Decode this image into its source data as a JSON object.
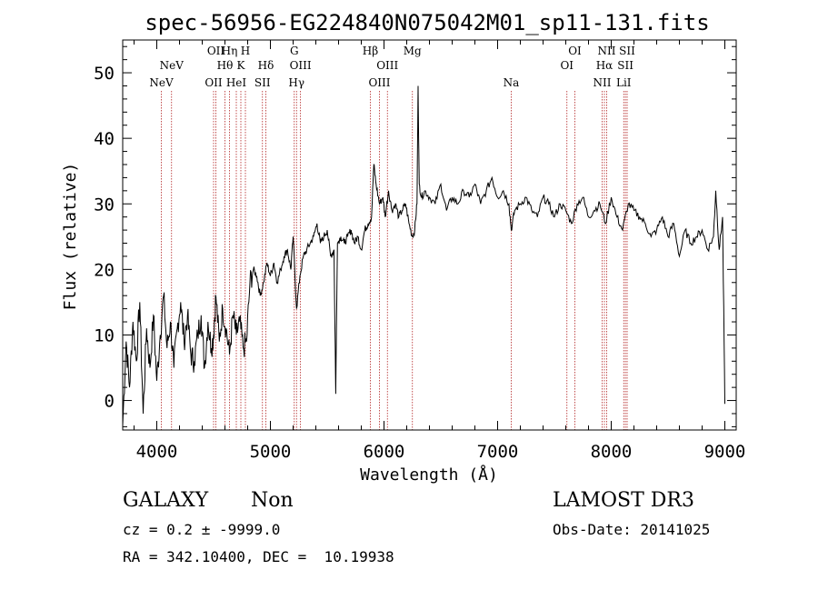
{
  "chart_data": {
    "type": "line",
    "title": "spec-56956-EG224840N075042M01_sp11-131.fits",
    "xlabel": "Wavelength (Å)",
    "ylabel": "Flux (relative)",
    "xlim": [
      3700,
      9100
    ],
    "ylim": [
      -4.5,
      55
    ],
    "xticks": [
      4000,
      5000,
      6000,
      7000,
      8000,
      9000
    ],
    "yticks": [
      0,
      10,
      20,
      30,
      40,
      50
    ],
    "series": [
      {
        "name": "spectrum",
        "x": [
          3700,
          3730,
          3760,
          3790,
          3820,
          3850,
          3880,
          3910,
          3940,
          3970,
          4000,
          4030,
          4060,
          4090,
          4120,
          4150,
          4180,
          4210,
          4240,
          4270,
          4300,
          4330,
          4360,
          4390,
          4420,
          4450,
          4480,
          4500,
          4520,
          4550,
          4580,
          4610,
          4640,
          4670,
          4700,
          4730,
          4760,
          4790,
          4820,
          4850,
          4880,
          4910,
          4940,
          4970,
          5000,
          5030,
          5060,
          5090,
          5120,
          5150,
          5180,
          5200,
          5230,
          5260,
          5290,
          5320,
          5350,
          5380,
          5410,
          5440,
          5470,
          5500,
          5530,
          5560,
          5575,
          5590,
          5620,
          5650,
          5680,
          5710,
          5740,
          5770,
          5800,
          5830,
          5860,
          5890,
          5910,
          5930,
          5960,
          5990,
          6010,
          6040,
          6070,
          6100,
          6130,
          6160,
          6190,
          6220,
          6250,
          6270,
          6290,
          6300,
          6310,
          6330,
          6360,
          6400,
          6450,
          6500,
          6550,
          6600,
          6650,
          6700,
          6750,
          6800,
          6850,
          6900,
          6950,
          7000,
          7050,
          7100,
          7120,
          7150,
          7200,
          7250,
          7300,
          7350,
          7400,
          7450,
          7500,
          7550,
          7600,
          7650,
          7700,
          7750,
          7800,
          7850,
          7900,
          7950,
          8000,
          8050,
          8100,
          8150,
          8200,
          8250,
          8300,
          8350,
          8400,
          8450,
          8500,
          8550,
          8600,
          8650,
          8700,
          8750,
          8800,
          8850,
          8900,
          8920,
          8950,
          8980,
          9000
        ],
        "values": [
          -3.8,
          9,
          2,
          12,
          6,
          15,
          -2,
          11,
          5,
          13,
          3,
          10,
          16,
          8,
          12,
          5,
          11,
          15,
          9,
          13,
          7,
          6,
          10,
          13,
          5,
          12,
          8,
          10,
          16,
          9,
          14,
          11,
          7,
          13,
          10,
          12,
          8,
          9,
          18,
          20,
          19,
          16,
          18,
          21,
          19,
          21,
          18,
          20,
          22,
          23,
          20,
          25,
          14,
          19,
          22,
          23,
          24,
          25,
          27,
          24,
          25,
          26,
          22,
          23,
          1,
          24,
          25,
          24,
          25,
          26,
          24,
          25,
          23,
          26,
          27,
          28,
          36,
          33,
          30,
          31,
          28,
          32,
          29,
          30,
          28,
          29,
          30,
          27,
          25,
          26,
          30,
          48,
          33,
          31,
          32,
          31,
          30,
          33,
          29,
          31,
          30,
          32,
          31,
          33,
          30,
          32,
          34,
          31,
          32,
          30,
          26,
          29,
          30,
          31,
          29,
          28,
          31,
          30,
          28,
          30,
          29,
          27,
          30,
          31,
          28,
          29,
          30,
          27,
          31,
          28,
          26,
          30,
          29,
          28,
          27,
          25,
          26,
          28,
          25,
          27,
          22,
          26,
          24,
          25,
          26,
          23,
          25,
          32,
          23,
          28,
          -0.5
        ]
      }
    ],
    "line_markers": [
      {
        "label": "NeV",
        "wl": 4040,
        "row": 2
      },
      {
        "label": "NeV",
        "wl": 4130,
        "row": 1
      },
      {
        "label": "OII",
        "wl": 4500,
        "row": 2
      },
      {
        "label": "OII",
        "wl": 4520,
        "row": 0
      },
      {
        "label": "Hθ",
        "wl": 4600,
        "row": 1
      },
      {
        "label": "Hη",
        "wl": 4640,
        "row": 0
      },
      {
        "label": "HeI",
        "wl": 4700,
        "row": 2
      },
      {
        "label": "K",
        "wl": 4740,
        "row": 1
      },
      {
        "label": "H",
        "wl": 4780,
        "row": 0
      },
      {
        "label": "SII",
        "wl": 4930,
        "row": 2
      },
      {
        "label": "Hδ",
        "wl": 4960,
        "row": 1
      },
      {
        "label": "G",
        "wl": 5210,
        "row": 0
      },
      {
        "label": "Hγ",
        "wl": 5230,
        "row": 2
      },
      {
        "label": "OIII",
        "wl": 5265,
        "row": 1
      },
      {
        "label": "Hβ",
        "wl": 5880,
        "row": 0
      },
      {
        "label": "OIII",
        "wl": 5960,
        "row": 2
      },
      {
        "label": "OIII",
        "wl": 6030,
        "row": 1
      },
      {
        "label": "Mg",
        "wl": 6250,
        "row": 0
      },
      {
        "label": "Na",
        "wl": 7120,
        "row": 2
      },
      {
        "label": "OI",
        "wl": 7610,
        "row": 1
      },
      {
        "label": "OI",
        "wl": 7680,
        "row": 0
      },
      {
        "label": "NII",
        "wl": 7920,
        "row": 2
      },
      {
        "label": "Hα",
        "wl": 7940,
        "row": 1
      },
      {
        "label": "NII",
        "wl": 7960,
        "row": 0
      },
      {
        "label": "LiI",
        "wl": 8110,
        "row": 2
      },
      {
        "label": "SII",
        "wl": 8125,
        "row": 1
      },
      {
        "label": "SII",
        "wl": 8140,
        "row": 0
      }
    ],
    "marker_color": "#b22222",
    "line_color": "#000000"
  },
  "footer": {
    "object_class": "GALAXY",
    "subclass": "Non",
    "survey": "LAMOST DR3",
    "redshift": "cz = 0.2 ± -9999.0",
    "obs_date": "Obs-Date: 20141025",
    "coords": "RA = 342.10400, DEC =  10.19938"
  }
}
